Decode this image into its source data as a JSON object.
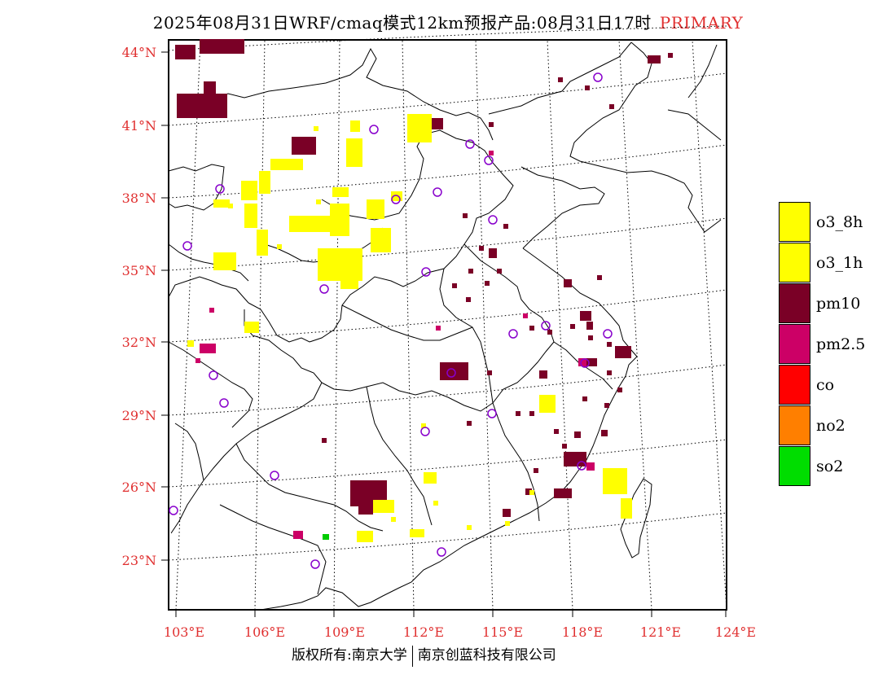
{
  "header": {
    "title": "2025年08月31日WRF/cmaq模式12km预报产品:08月31日17时",
    "primary_label": "PRIMARY"
  },
  "map": {
    "lat_labels": [
      "44°N",
      "41°N",
      "38°N",
      "35°N",
      "32°N",
      "29°N",
      "26°N",
      "23°N"
    ],
    "lon_labels": [
      "103°E",
      "106°E",
      "109°E",
      "112°E",
      "115°E",
      "118°E",
      "121°E",
      "124°E"
    ],
    "label_color": "#e03030",
    "pollutant_colors": {
      "o3": "#ffff00",
      "pm10": "#7a0026",
      "pm25": "#cc0066",
      "so2": "#00cc00"
    },
    "station_marker_color": "#8800cc"
  },
  "legend": {
    "items": [
      {
        "label": "o3_8h",
        "color": "#ffff00"
      },
      {
        "label": "o3_1h",
        "color": "#ffff00"
      },
      {
        "label": "pm10",
        "color": "#7a0026"
      },
      {
        "label": "pm2.5",
        "color": "#cc0066"
      },
      {
        "label": "co",
        "color": "#ff0000"
      },
      {
        "label": "no2",
        "color": "#ff7f00"
      },
      {
        "label": "so2",
        "color": "#00dd00"
      }
    ]
  },
  "footer": {
    "left": "版权所有:南京大学",
    "right": "南京创蓝科技有限公司"
  }
}
